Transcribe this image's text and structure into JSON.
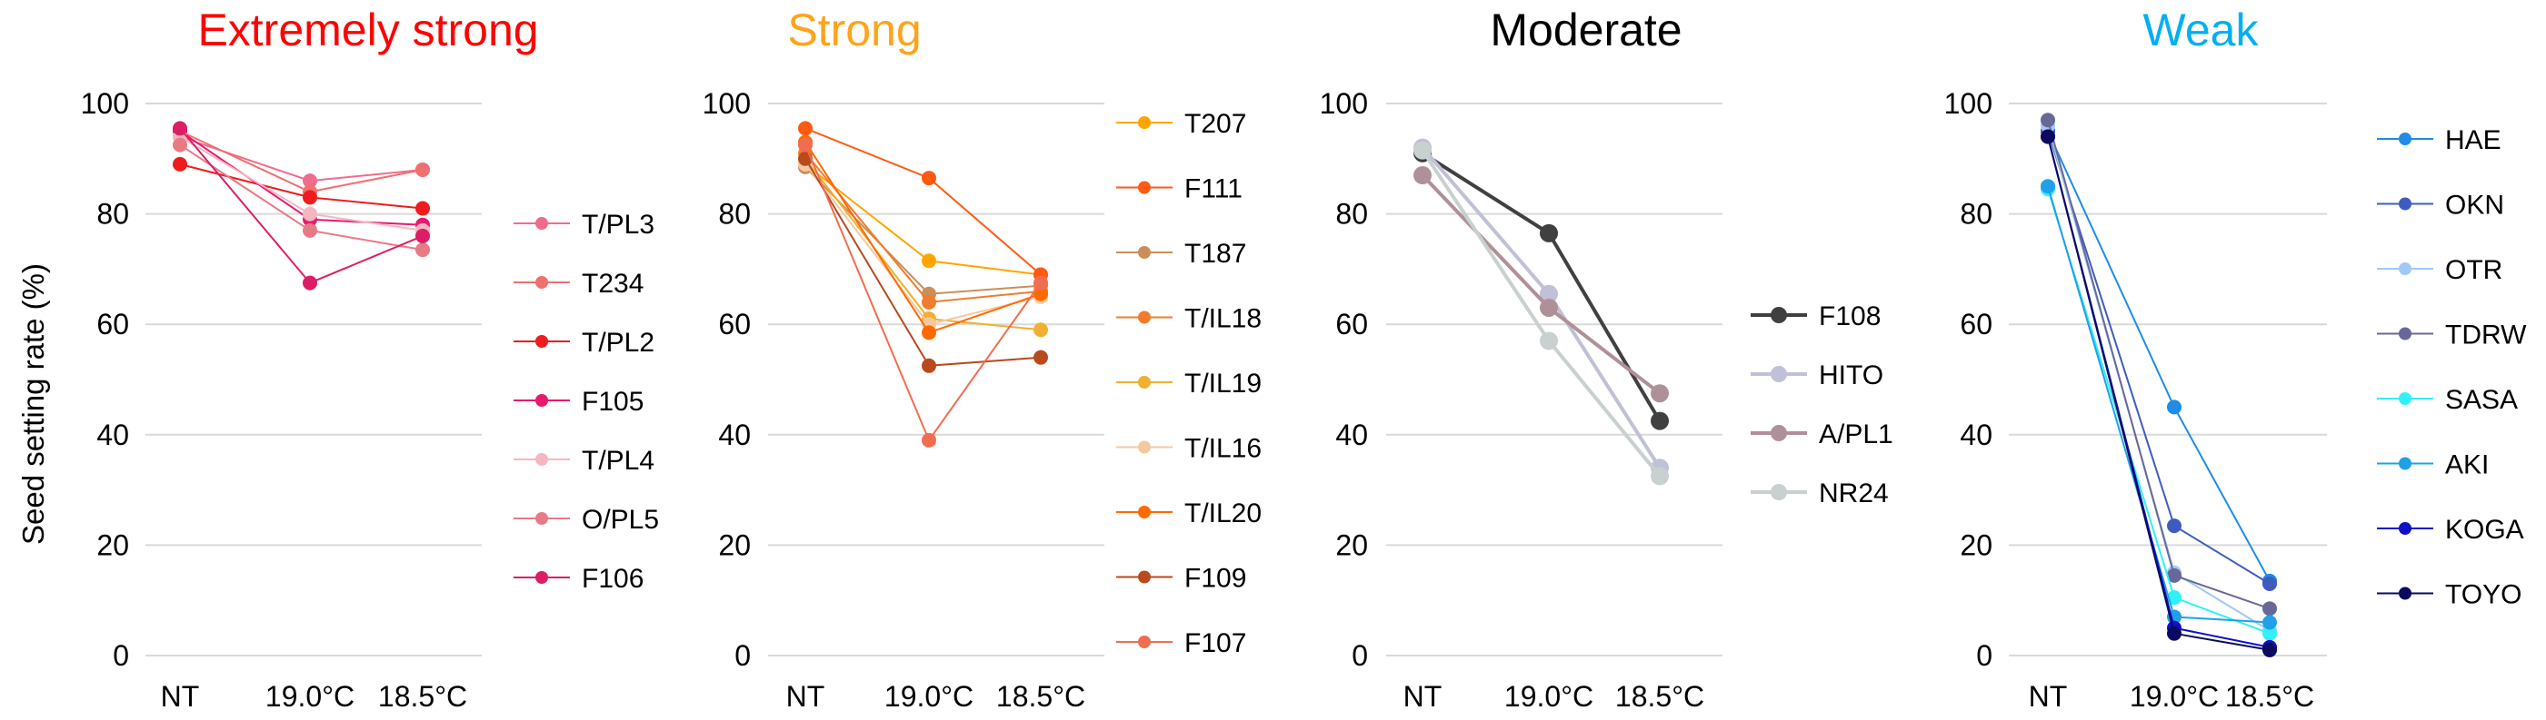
{
  "figure": {
    "ylabel": "Seed setting rate (%)",
    "grid_color": "#d9d9d9"
  },
  "chart_data": [
    {
      "type": "line",
      "title": "Extremely strong",
      "title_color": "#ff0000",
      "categories": [
        "NT",
        "19.0°C",
        "18.5°C"
      ],
      "ylim": [
        0,
        100
      ],
      "yticks": [
        0,
        20,
        40,
        60,
        80,
        100
      ],
      "ylabel": "Seed setting rate (%)",
      "legend_position": "right",
      "series": [
        {
          "name": "T/PL3",
          "color": "#f06c8c",
          "values": [
            94,
            86,
            88
          ]
        },
        {
          "name": "T234",
          "color": "#f07070",
          "values": [
            95,
            84,
            88
          ]
        },
        {
          "name": "T/PL2",
          "color": "#ee1c1c",
          "values": [
            89,
            83,
            81
          ]
        },
        {
          "name": "F105",
          "color": "#e81a6e",
          "values": [
            95,
            79,
            78
          ]
        },
        {
          "name": "T/PL4",
          "color": "#f6b6c0",
          "values": [
            94,
            80,
            77
          ]
        },
        {
          "name": "O/PL5",
          "color": "#e87a86",
          "values": [
            92.5,
            77,
            73.5
          ]
        },
        {
          "name": "F106",
          "color": "#dc1e66",
          "values": [
            95.5,
            67.5,
            76
          ]
        }
      ]
    },
    {
      "type": "line",
      "title": "Strong",
      "title_color": "#ffa31a",
      "categories": [
        "NT",
        "19.0°C",
        "18.5°C"
      ],
      "ylim": [
        0,
        100
      ],
      "yticks": [
        0,
        20,
        40,
        60,
        80,
        100
      ],
      "legend_position": "right",
      "series": [
        {
          "name": "T207",
          "color": "#ffa500",
          "values": [
            89,
            71.5,
            69
          ]
        },
        {
          "name": "F111",
          "color": "#ff5a12",
          "values": [
            95.5,
            86.5,
            69
          ]
        },
        {
          "name": "T187",
          "color": "#c98e5a",
          "values": [
            88.5,
            65.5,
            67
          ]
        },
        {
          "name": "T/IL18",
          "color": "#f07c2e",
          "values": [
            91,
            64,
            66
          ]
        },
        {
          "name": "T/IL19",
          "color": "#f0b030",
          "values": [
            90,
            61,
            59
          ]
        },
        {
          "name": "T/IL16",
          "color": "#f5c9a0",
          "values": [
            89,
            60,
            65
          ]
        },
        {
          "name": "T/IL20",
          "color": "#ff6a00",
          "values": [
            93,
            58.5,
            65.5
          ]
        },
        {
          "name": "F109",
          "color": "#b84a1e",
          "values": [
            90,
            52.5,
            54
          ]
        },
        {
          "name": "F107",
          "color": "#f06d50",
          "values": [
            92.5,
            39,
            67.5
          ]
        }
      ]
    },
    {
      "type": "line",
      "title": "Moderate",
      "title_color": "#000000",
      "categories": [
        "NT",
        "19.0°C",
        "18.5°C"
      ],
      "ylim": [
        0,
        100
      ],
      "yticks": [
        0,
        20,
        40,
        60,
        80,
        100
      ],
      "legend_position": "right",
      "series": [
        {
          "name": "F108",
          "color": "#404040",
          "values": [
            91,
            76.5,
            42.5
          ]
        },
        {
          "name": "HITO",
          "color": "#c0c0d8",
          "values": [
            92,
            65.5,
            34
          ]
        },
        {
          "name": "A/PL1",
          "color": "#b09098",
          "values": [
            87,
            63,
            47.5
          ]
        },
        {
          "name": "NR24",
          "color": "#c8d0d0",
          "values": [
            91.5,
            57,
            32.5
          ]
        }
      ]
    },
    {
      "type": "line",
      "title": "Weak",
      "title_color": "#00b0f0",
      "categories": [
        "NT",
        "19.0°C",
        "18.5°C"
      ],
      "ylim": [
        0,
        100
      ],
      "yticks": [
        0,
        20,
        40,
        60,
        80,
        100
      ],
      "legend_position": "right",
      "series": [
        {
          "name": "HAE",
          "color": "#1e8ce8",
          "values": [
            95,
            45,
            13.5
          ]
        },
        {
          "name": "OKN",
          "color": "#3e5cc0",
          "values": [
            95,
            23.5,
            13
          ]
        },
        {
          "name": "OTR",
          "color": "#a0c8f8",
          "values": [
            96,
            15,
            4.5
          ]
        },
        {
          "name": "TDRW",
          "color": "#686898",
          "values": [
            97,
            14.5,
            8.5
          ]
        },
        {
          "name": "SASA",
          "color": "#30f0f8",
          "values": [
            84.5,
            10.5,
            4
          ]
        },
        {
          "name": "AKI",
          "color": "#20a0e8",
          "values": [
            85,
            7,
            6
          ]
        },
        {
          "name": "KOGA",
          "color": "#1010c8",
          "values": [
            94,
            5,
            1.5
          ]
        },
        {
          "name": "TOYO",
          "color": "#0a0a60",
          "values": [
            94,
            4,
            1
          ]
        }
      ]
    }
  ]
}
